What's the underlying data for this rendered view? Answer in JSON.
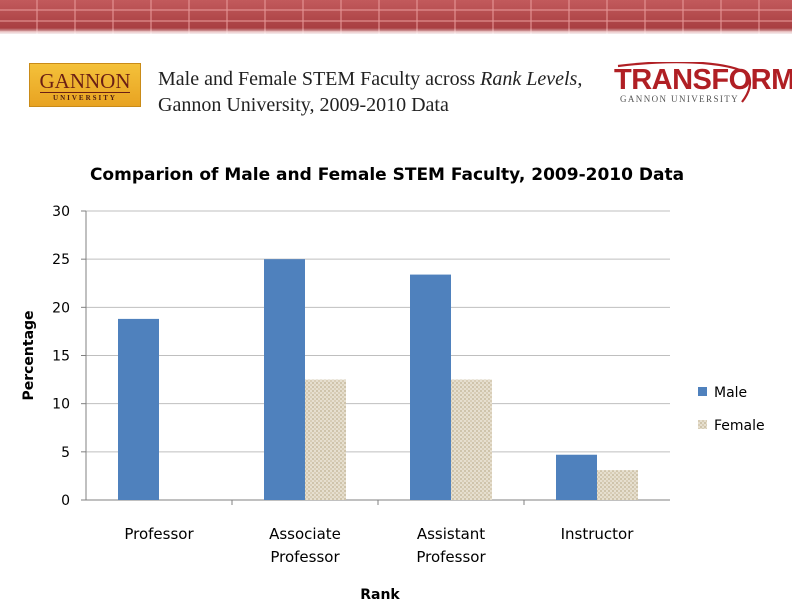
{
  "header": {
    "logo_left": {
      "name": "GANNON",
      "sub": "UNIVERSITY"
    },
    "title_part1": "Male and Female STEM Faculty across ",
    "title_italic1": "Rank",
    "title_italic2": "Levels",
    "title_part2": ", Gannon University, 2009-2010 Data",
    "logo_right": {
      "name": "TRANSFORM",
      "sub": "GANNON UNIVERSITY"
    }
  },
  "colors": {
    "male": "#4f81bd",
    "female": "#ddd5c2",
    "grid": "#bfbfbf",
    "axis_text": "#000000",
    "brand_red": "#b01f24"
  },
  "chart_data": {
    "type": "bar",
    "title": "Comparion of Male and Female STEM Faculty, 2009-2010 Data",
    "xlabel": "Rank",
    "ylabel": "Percentage",
    "ylim": [
      0,
      30
    ],
    "yticks": [
      0,
      5,
      10,
      15,
      20,
      25,
      30
    ],
    "categories": [
      [
        "Professor"
      ],
      [
        "Associate",
        "Professor"
      ],
      [
        "Assistant",
        "Professor"
      ],
      [
        "Instructor"
      ]
    ],
    "series": [
      {
        "name": "Male",
        "values": [
          18.8,
          25.0,
          23.4,
          4.7
        ]
      },
      {
        "name": "Female",
        "values": [
          0,
          12.5,
          12.5,
          3.1
        ]
      }
    ],
    "legend": "right",
    "grid": true
  }
}
